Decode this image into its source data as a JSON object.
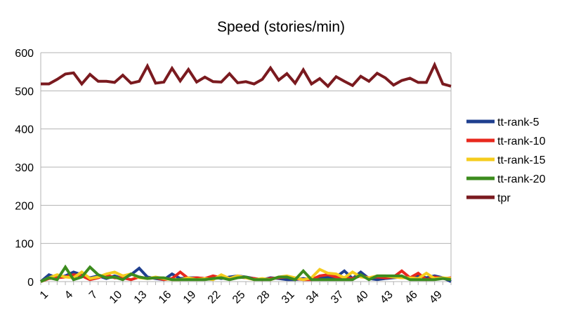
{
  "chart_data": {
    "type": "line",
    "title": "Speed (stories/min)",
    "xlabel": "",
    "ylabel": "",
    "x": [
      1,
      2,
      3,
      4,
      5,
      6,
      7,
      8,
      9,
      10,
      11,
      12,
      13,
      14,
      15,
      16,
      17,
      18,
      19,
      20,
      21,
      22,
      23,
      24,
      25,
      26,
      27,
      28,
      29,
      30,
      31,
      32,
      33,
      34,
      35,
      36,
      37,
      38,
      39,
      40,
      41,
      42,
      43,
      44,
      45,
      46,
      47,
      48,
      49,
      50,
      51
    ],
    "x_tick_labels": [
      "1",
      "4",
      "7",
      "10",
      "13",
      "16",
      "19",
      "22",
      "25",
      "28",
      "31",
      "34",
      "37",
      "40",
      "43",
      "46",
      "49"
    ],
    "ylim": [
      0,
      600
    ],
    "y_ticks": [
      0,
      100,
      200,
      300,
      400,
      500,
      600
    ],
    "grid": "horizontal",
    "legend_position": "right",
    "series": [
      {
        "name": "tt-rank-5",
        "color": "#1f3f8f",
        "values": [
          0,
          18,
          10,
          15,
          25,
          18,
          10,
          15,
          8,
          15,
          8,
          18,
          35,
          12,
          8,
          5,
          20,
          8,
          10,
          10,
          8,
          12,
          8,
          12,
          15,
          12,
          8,
          5,
          10,
          8,
          5,
          5,
          8,
          5,
          10,
          12,
          12,
          28,
          8,
          25,
          8,
          5,
          8,
          10,
          12,
          8,
          15,
          10,
          15,
          10,
          0
        ]
      },
      {
        "name": "tt-rank-10",
        "color": "#e8281e",
        "values": [
          0,
          8,
          10,
          12,
          18,
          15,
          5,
          10,
          18,
          10,
          10,
          5,
          12,
          8,
          10,
          5,
          8,
          25,
          8,
          10,
          8,
          15,
          10,
          8,
          12,
          10,
          8,
          5,
          8,
          10,
          12,
          8,
          5,
          5,
          15,
          18,
          12,
          10,
          8,
          15,
          10,
          12,
          10,
          12,
          28,
          10,
          22,
          5,
          12,
          8,
          10
        ]
      },
      {
        "name": "tt-rank-15",
        "color": "#f5cc1e",
        "values": [
          0,
          10,
          18,
          12,
          10,
          25,
          8,
          12,
          20,
          25,
          15,
          20,
          10,
          8,
          12,
          8,
          5,
          5,
          10,
          5,
          8,
          5,
          18,
          8,
          15,
          10,
          5,
          8,
          5,
          12,
          15,
          10,
          5,
          10,
          32,
          22,
          20,
          10,
          25,
          12,
          10,
          15,
          15,
          12,
          10,
          10,
          8,
          22,
          8,
          10,
          8
        ]
      },
      {
        "name": "tt-rank-20",
        "color": "#3c8c1e",
        "values": [
          0,
          10,
          5,
          38,
          5,
          12,
          38,
          18,
          10,
          12,
          5,
          20,
          12,
          8,
          10,
          10,
          5,
          5,
          5,
          5,
          5,
          8,
          10,
          5,
          10,
          12,
          5,
          5,
          5,
          12,
          12,
          5,
          28,
          5,
          5,
          5,
          5,
          5,
          5,
          18,
          5,
          15,
          15,
          15,
          15,
          5,
          5,
          5,
          5,
          8,
          5
        ]
      },
      {
        "name": "tpr",
        "color": "#7a1a1f",
        "values": [
          518,
          518,
          530,
          544,
          547,
          518,
          543,
          525,
          525,
          522,
          541,
          520,
          525,
          565,
          520,
          523,
          559,
          526,
          556,
          523,
          536,
          524,
          523,
          545,
          521,
          524,
          518,
          530,
          560,
          528,
          545,
          520,
          555,
          518,
          532,
          512,
          537,
          525,
          514,
          538,
          525,
          546,
          534,
          515,
          527,
          533,
          522,
          522,
          568,
          518,
          512
        ]
      }
    ]
  }
}
